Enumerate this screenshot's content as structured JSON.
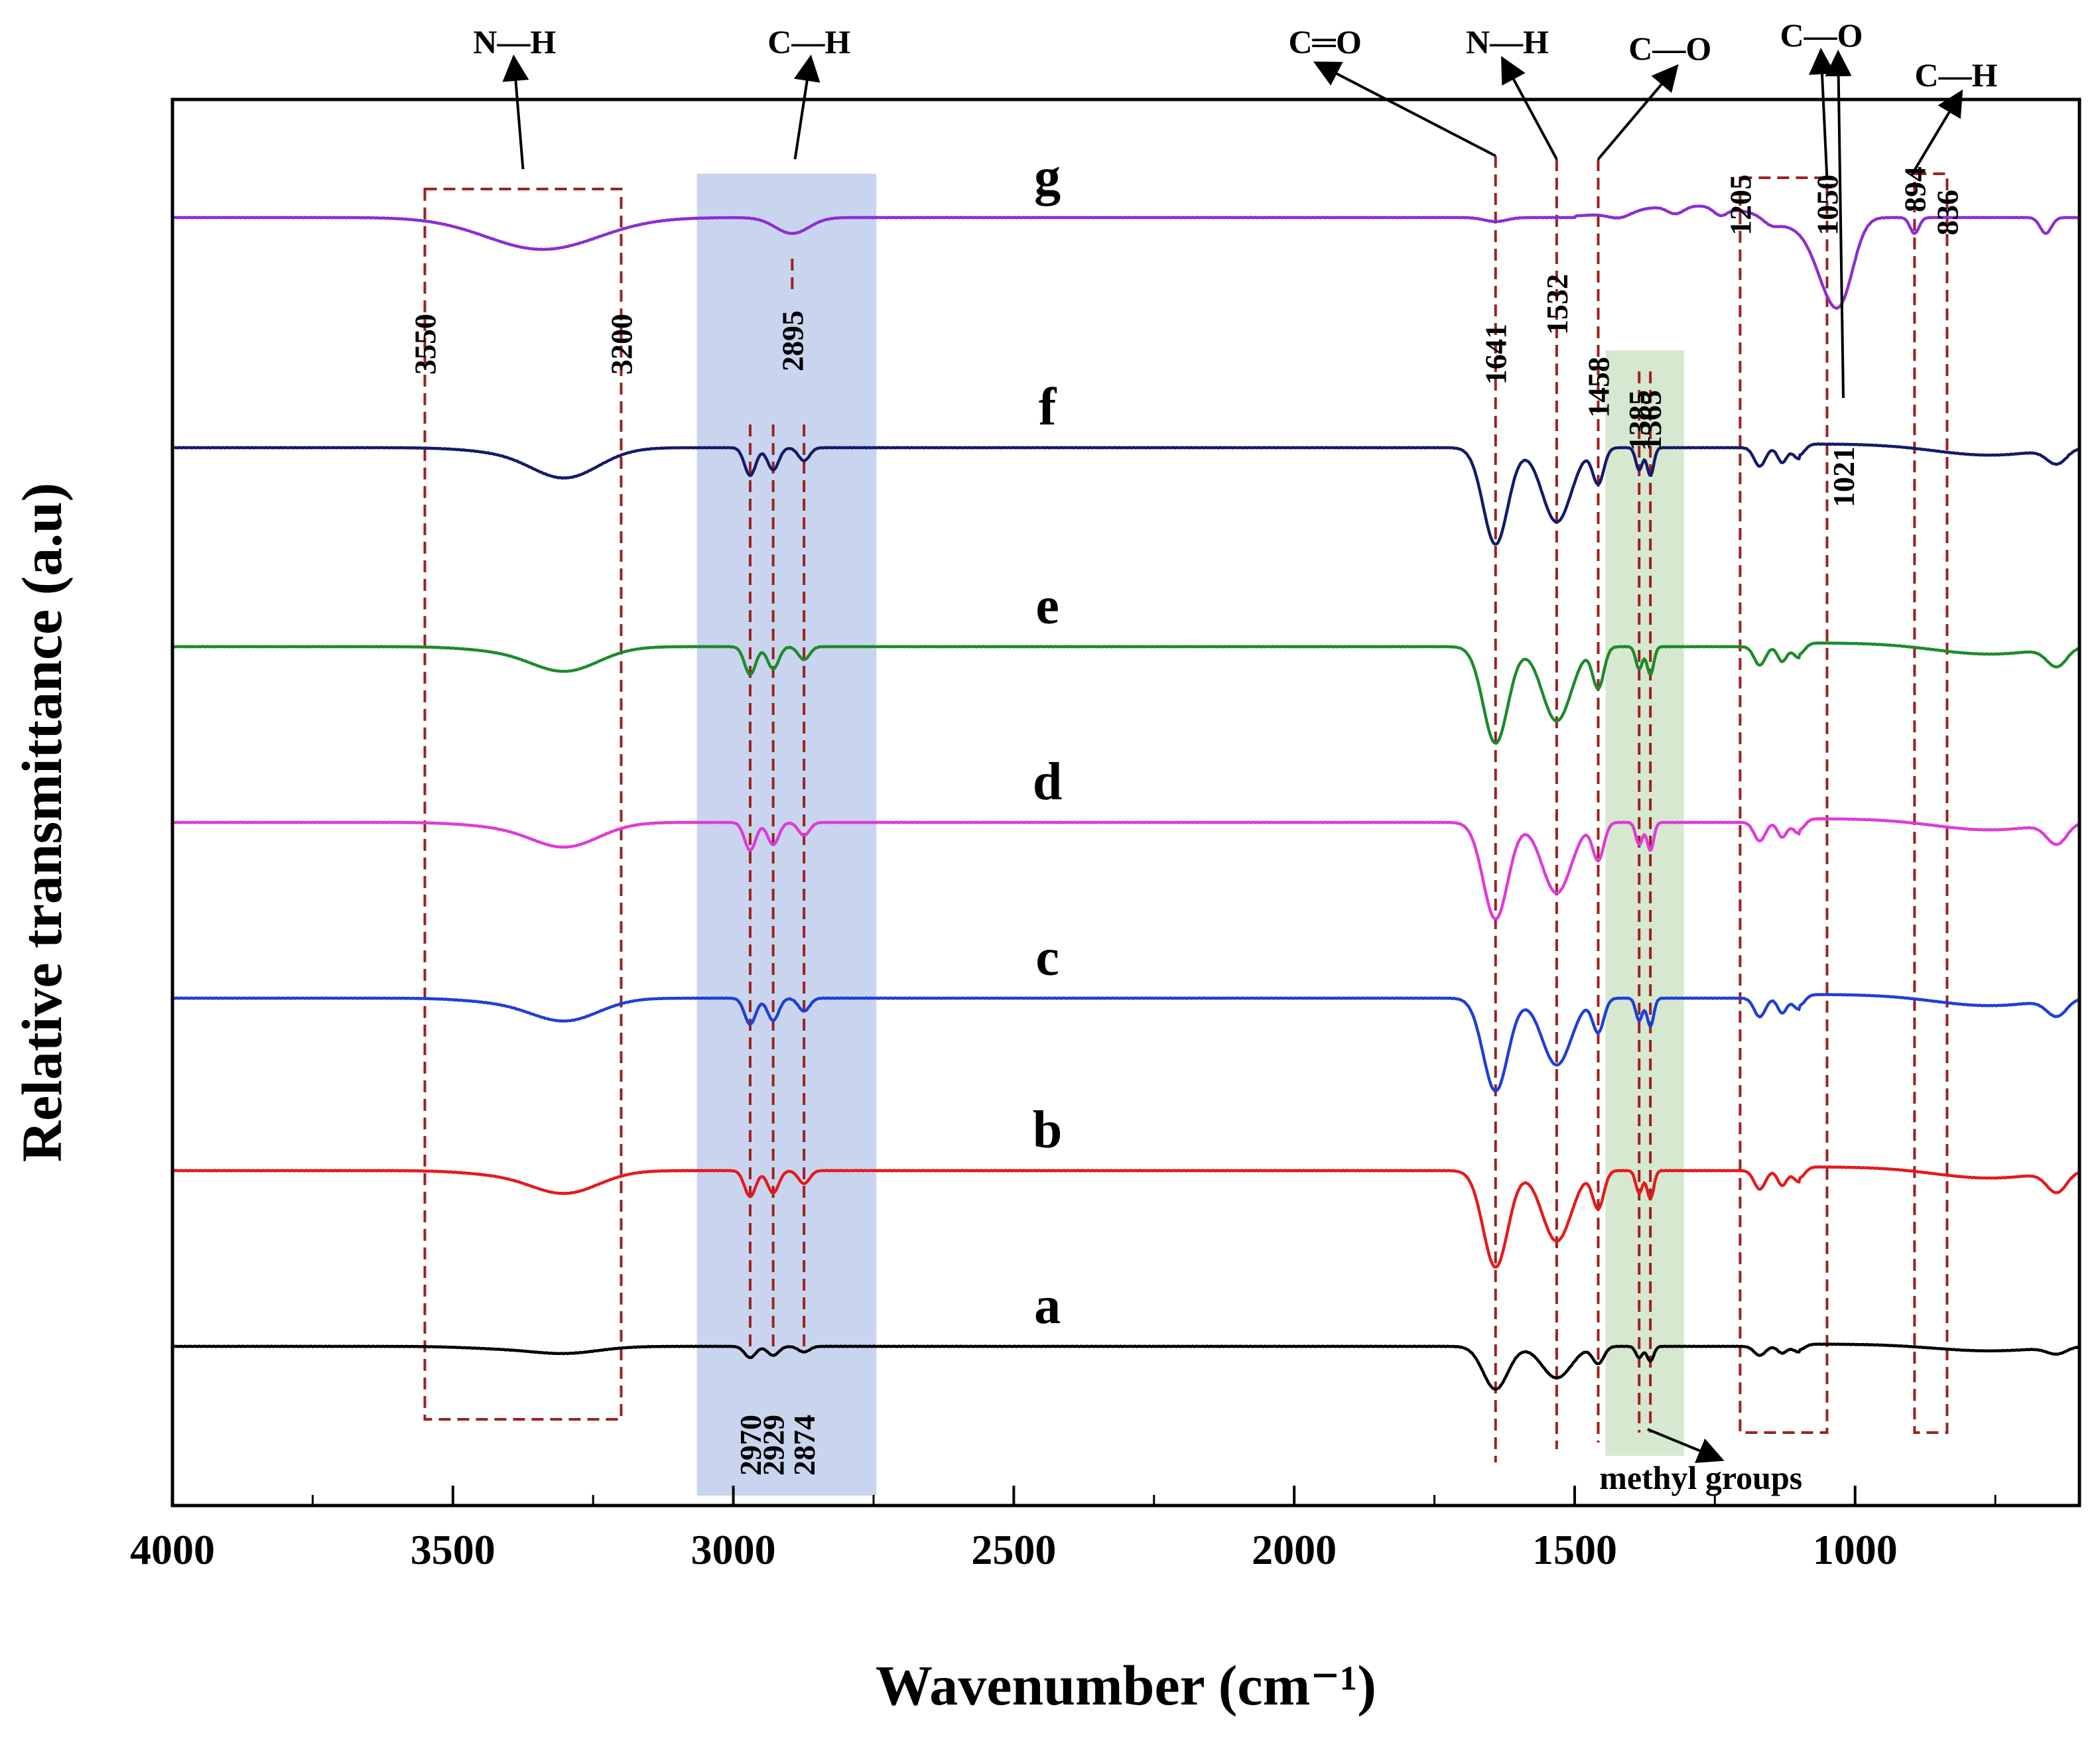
{
  "chart_data": {
    "type": "line",
    "title": "",
    "xlabel": "Wavenumber (cm⁻¹)",
    "ylabel": "Relative transmittance (a.u)",
    "xlim": [
      4000,
      600
    ],
    "x_ticks": [
      4000,
      3500,
      3000,
      2500,
      2000,
      1500,
      1000
    ],
    "y_ticks_shown": false,
    "series": [
      {
        "name": "a",
        "color": "#000000",
        "offset": 0,
        "bands": [
          {
            "center": 3300,
            "width": 60,
            "depth": 0.6
          },
          {
            "center": 2970,
            "width": 10,
            "depth": 1.0
          },
          {
            "center": 2929,
            "width": 10,
            "depth": 0.8
          },
          {
            "center": 2874,
            "width": 10,
            "depth": 0.5
          },
          {
            "center": 1641,
            "width": 22,
            "depth": 3.8
          },
          {
            "center": 1532,
            "width": 26,
            "depth": 2.8
          },
          {
            "center": 1458,
            "width": 10,
            "depth": 1.5
          },
          {
            "center": 1385,
            "width": 6,
            "depth": 1.0
          },
          {
            "center": 1365,
            "width": 6,
            "depth": 1.3
          },
          {
            "center": 1170,
            "width": 10,
            "depth": 0.8
          },
          {
            "center": 1130,
            "width": 8,
            "depth": 0.6
          },
          {
            "center": 1100,
            "width": 10,
            "depth": 0.5
          },
          {
            "center": 640,
            "width": 18,
            "depth": 0.6
          }
        ]
      },
      {
        "name": "b",
        "color": "#e41a1c",
        "offset": 1,
        "bands": [
          {
            "center": 3300,
            "width": 60,
            "depth": 1.2
          },
          {
            "center": 2970,
            "width": 10,
            "depth": 1.4
          },
          {
            "center": 2929,
            "width": 10,
            "depth": 1.2
          },
          {
            "center": 2874,
            "width": 10,
            "depth": 0.7
          },
          {
            "center": 1641,
            "width": 22,
            "depth": 5.2
          },
          {
            "center": 1532,
            "width": 26,
            "depth": 3.8
          },
          {
            "center": 1458,
            "width": 10,
            "depth": 2.0
          },
          {
            "center": 1385,
            "width": 6,
            "depth": 1.2
          },
          {
            "center": 1365,
            "width": 6,
            "depth": 1.5
          },
          {
            "center": 1170,
            "width": 10,
            "depth": 1.0
          },
          {
            "center": 1130,
            "width": 8,
            "depth": 0.8
          },
          {
            "center": 1100,
            "width": 10,
            "depth": 0.6
          },
          {
            "center": 640,
            "width": 18,
            "depth": 1.1
          }
        ]
      },
      {
        "name": "c",
        "color": "#1f3fd6",
        "offset": 2,
        "bands": [
          {
            "center": 3300,
            "width": 60,
            "depth": 1.2
          },
          {
            "center": 2970,
            "width": 10,
            "depth": 1.4
          },
          {
            "center": 2929,
            "width": 10,
            "depth": 1.2
          },
          {
            "center": 2874,
            "width": 10,
            "depth": 0.7
          },
          {
            "center": 1641,
            "width": 22,
            "depth": 5.0
          },
          {
            "center": 1532,
            "width": 26,
            "depth": 3.6
          },
          {
            "center": 1458,
            "width": 10,
            "depth": 1.8
          },
          {
            "center": 1385,
            "width": 6,
            "depth": 1.2
          },
          {
            "center": 1365,
            "width": 6,
            "depth": 1.5
          },
          {
            "center": 1170,
            "width": 10,
            "depth": 1.0
          },
          {
            "center": 1130,
            "width": 8,
            "depth": 0.8
          },
          {
            "center": 1100,
            "width": 10,
            "depth": 0.6
          },
          {
            "center": 640,
            "width": 18,
            "depth": 0.9
          }
        ]
      },
      {
        "name": "d",
        "color": "#e03ad8",
        "offset": 3,
        "bands": [
          {
            "center": 3300,
            "width": 60,
            "depth": 1.3
          },
          {
            "center": 2970,
            "width": 10,
            "depth": 1.5
          },
          {
            "center": 2929,
            "width": 10,
            "depth": 1.2
          },
          {
            "center": 2874,
            "width": 10,
            "depth": 0.7
          },
          {
            "center": 1641,
            "width": 22,
            "depth": 5.2
          },
          {
            "center": 1532,
            "width": 26,
            "depth": 3.8
          },
          {
            "center": 1458,
            "width": 10,
            "depth": 2.0
          },
          {
            "center": 1385,
            "width": 6,
            "depth": 1.2
          },
          {
            "center": 1365,
            "width": 6,
            "depth": 1.5
          },
          {
            "center": 1170,
            "width": 10,
            "depth": 1.0
          },
          {
            "center": 1130,
            "width": 8,
            "depth": 0.8
          },
          {
            "center": 1100,
            "width": 10,
            "depth": 0.6
          },
          {
            "center": 640,
            "width": 18,
            "depth": 1.1
          }
        ]
      },
      {
        "name": "e",
        "color": "#1e8a2a",
        "offset": 4,
        "bands": [
          {
            "center": 3300,
            "width": 60,
            "depth": 1.3
          },
          {
            "center": 2970,
            "width": 10,
            "depth": 1.5
          },
          {
            "center": 2929,
            "width": 10,
            "depth": 1.2
          },
          {
            "center": 2874,
            "width": 10,
            "depth": 0.7
          },
          {
            "center": 1641,
            "width": 22,
            "depth": 5.2
          },
          {
            "center": 1532,
            "width": 26,
            "depth": 4.0
          },
          {
            "center": 1458,
            "width": 10,
            "depth": 2.2
          },
          {
            "center": 1385,
            "width": 6,
            "depth": 1.2
          },
          {
            "center": 1365,
            "width": 6,
            "depth": 1.5
          },
          {
            "center": 1170,
            "width": 10,
            "depth": 1.0
          },
          {
            "center": 1130,
            "width": 8,
            "depth": 0.8
          },
          {
            "center": 1100,
            "width": 10,
            "depth": 0.6
          },
          {
            "center": 640,
            "width": 18,
            "depth": 1.0
          }
        ]
      },
      {
        "name": "f",
        "color": "#141a6b",
        "offset": 5,
        "bands": [
          {
            "center": 3300,
            "width": 60,
            "depth": 1.6
          },
          {
            "center": 2970,
            "width": 10,
            "depth": 1.5
          },
          {
            "center": 2929,
            "width": 10,
            "depth": 1.2
          },
          {
            "center": 2874,
            "width": 10,
            "depth": 0.7
          },
          {
            "center": 1641,
            "width": 22,
            "depth": 5.2
          },
          {
            "center": 1532,
            "width": 26,
            "depth": 4.0
          },
          {
            "center": 1458,
            "width": 10,
            "depth": 1.9
          },
          {
            "center": 1385,
            "width": 6,
            "depth": 1.2
          },
          {
            "center": 1365,
            "width": 6,
            "depth": 1.5
          },
          {
            "center": 1170,
            "width": 10,
            "depth": 1.0
          },
          {
            "center": 1130,
            "width": 8,
            "depth": 0.8
          },
          {
            "center": 1100,
            "width": 10,
            "depth": 0.6
          },
          {
            "center": 640,
            "width": 18,
            "depth": 0.8
          }
        ]
      },
      {
        "name": "g",
        "color": "#8b2fd0",
        "offset": 6.3,
        "bands": [
          {
            "center": 3340,
            "width": 100,
            "depth": 1.6
          },
          {
            "center": 2895,
            "width": 30,
            "depth": 0.8
          },
          {
            "center": 1641,
            "width": 20,
            "depth": 0.2
          },
          {
            "center": 1420,
            "width": 20,
            "depth": 0.3
          },
          {
            "center": 1320,
            "width": 15,
            "depth": 0.4
          },
          {
            "center": 1240,
            "width": 12,
            "depth": 0.4
          },
          {
            "center": 1150,
            "width": 14,
            "depth": 0.3
          },
          {
            "center": 1050,
            "width": 25,
            "depth": 2.5
          },
          {
            "center": 1021,
            "width": 22,
            "depth": 2.8
          },
          {
            "center": 894,
            "width": 8,
            "depth": 0.8
          },
          {
            "center": 660,
            "width": 10,
            "depth": 0.8
          }
        ]
      }
    ],
    "peak_labels": [
      "3550",
      "3200",
      "2895",
      "2970",
      "2929",
      "2874",
      "1641",
      "1532",
      "1458",
      "1385",
      "1365",
      "1205",
      "1050",
      "1021",
      "894",
      "836"
    ],
    "bond_labels": [
      "N—H",
      "C—H",
      "C═O",
      "N—H",
      "C—O",
      "C—O",
      "C—H"
    ],
    "annotation": "methyl groups"
  }
}
